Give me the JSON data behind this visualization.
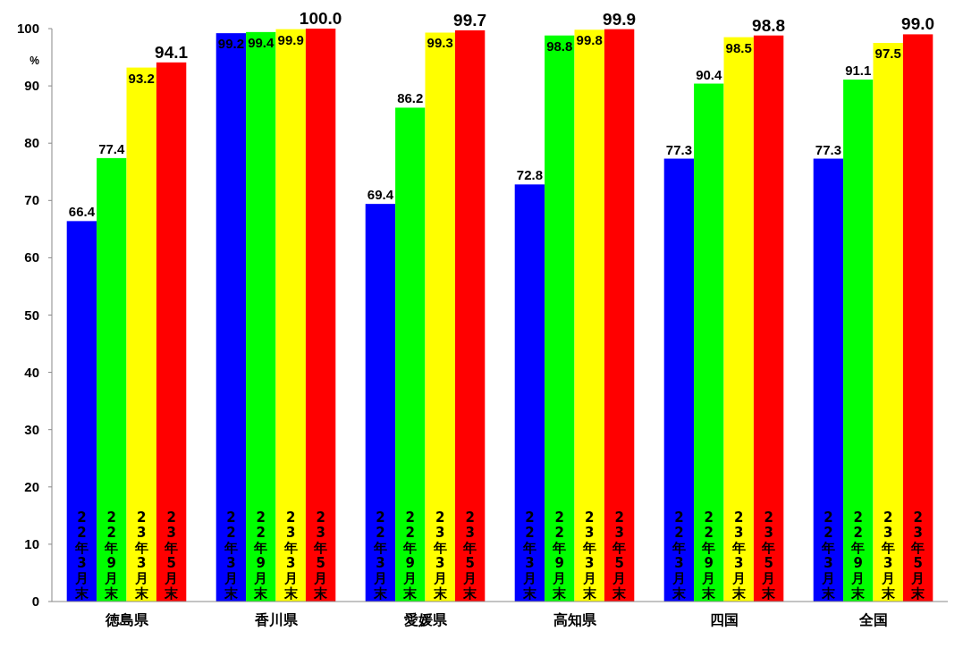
{
  "chart_data": {
    "type": "bar",
    "categories": [
      "徳島県",
      "香川県",
      "愛媛県",
      "高知県",
      "四国",
      "全国"
    ],
    "series": [
      {
        "name": "22年3月末",
        "color": "#0000ff",
        "values": [
          66.4,
          99.2,
          69.4,
          72.8,
          77.3,
          77.3
        ],
        "value_labels": [
          "66.4",
          "99.2",
          "69.4",
          "72.8",
          "77.3",
          "77.3"
        ]
      },
      {
        "name": "22年9月末",
        "color": "#00ff00",
        "values": [
          77.4,
          99.4,
          86.2,
          98.8,
          90.4,
          91.1
        ],
        "value_labels": [
          "77.4",
          "99.4",
          "86.2",
          "98.8",
          "90.4",
          "91.1"
        ]
      },
      {
        "name": "23年3月末",
        "color": "#ffff00",
        "values": [
          93.2,
          99.9,
          99.3,
          99.8,
          98.5,
          97.5
        ],
        "value_labels": [
          "93.2",
          "99.9",
          "99.3",
          "99.8",
          "98.5",
          "97.5"
        ]
      },
      {
        "name": "23年5月末",
        "color": "#ff0000",
        "values": [
          94.1,
          100,
          99.7,
          99.9,
          98.8,
          99
        ],
        "value_labels": [
          "94.1",
          "100.0",
          "99.7",
          "99.9",
          "98.8",
          "99.0"
        ]
      }
    ],
    "ylabel": "%",
    "ylim": [
      0,
      100
    ],
    "yticks": [
      0,
      10,
      20,
      30,
      40,
      50,
      60,
      70,
      80,
      90,
      100
    ],
    "grid": false
  }
}
